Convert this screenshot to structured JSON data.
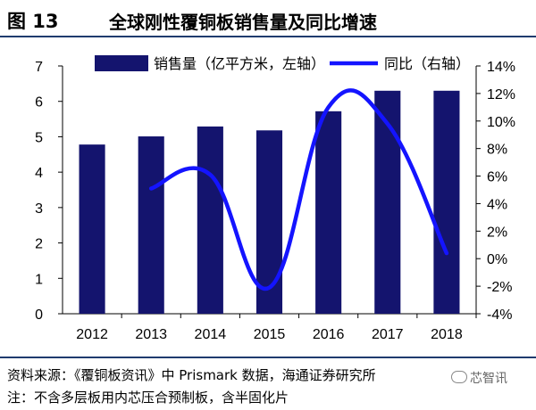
{
  "header": {
    "figure_label": "图 13",
    "title": "全球刚性覆铜板销售量及同比增速"
  },
  "footer": {
    "source": "资料来源：《覆铜板资讯》中 Prismark 数据，海通证券研究所",
    "note": "注：不含多层板用内芯压合预制板，含半固化片",
    "watermark": "芯智讯"
  },
  "chart_data": {
    "type": "bar",
    "categories": [
      "2012",
      "2013",
      "2014",
      "2015",
      "2016",
      "2017",
      "2018"
    ],
    "series": [
      {
        "name": "销售量（亿平方米，左轴）",
        "type": "bar",
        "axis": "left",
        "values": [
          4.78,
          5.01,
          5.29,
          5.18,
          5.72,
          6.3,
          6.3
        ],
        "color": "#14146e"
      },
      {
        "name": "同比（右轴）",
        "type": "line",
        "axis": "right",
        "x": [
          "2013",
          "2014",
          "2015",
          "2016",
          "2017",
          "2018"
        ],
        "values": [
          5.1,
          6.1,
          -2.1,
          11.0,
          9.8,
          0.4
        ],
        "color": "#1414ff"
      }
    ],
    "y_left": {
      "ylim": [
        0,
        7
      ],
      "ticks": [
        "0",
        "1",
        "2",
        "3",
        "4",
        "5",
        "6",
        "7"
      ]
    },
    "y_right": {
      "ylim": [
        -4,
        14
      ],
      "ticks": [
        "-4%",
        "-2%",
        "0%",
        "2%",
        "4%",
        "6%",
        "8%",
        "10%",
        "12%",
        "14%"
      ]
    },
    "grid": false,
    "legend": "top"
  }
}
